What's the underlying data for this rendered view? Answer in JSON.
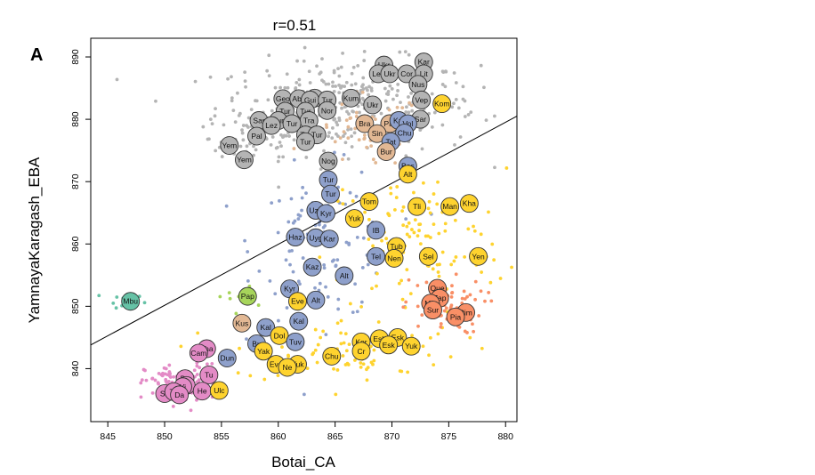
{
  "panel_label": "A",
  "chart_data": {
    "type": "scatter",
    "title": "r=0.51",
    "xlabel": "Botai_CA",
    "ylabel": "YamnayaKaragash_EBA",
    "xlim": [
      843.5,
      881
    ],
    "ylim": [
      831.5,
      893
    ],
    "xticks": [
      845,
      850,
      855,
      860,
      865,
      870,
      875,
      880
    ],
    "yticks": [
      840,
      850,
      860,
      870,
      880,
      890
    ],
    "grid": false,
    "fit_line": {
      "x": [
        843.5,
        881
      ],
      "y": [
        843.8,
        880.5
      ]
    },
    "colors": {
      "gray": "#b4b4b4",
      "tan": "#e2b894",
      "blue": "#8ea0cb",
      "yellow": "#fed32f",
      "orange": "#f98f66",
      "pink": "#e38bc6",
      "green": "#a7d55b",
      "teal": "#66c2a6"
    },
    "labeled_points": [
      {
        "t": "Ukr",
        "x": 869.3,
        "y": 888.7,
        "c": "gray"
      },
      {
        "t": "Kar",
        "x": 872.8,
        "y": 889.2,
        "c": "gray"
      },
      {
        "t": "Lez",
        "x": 868.8,
        "y": 887.3,
        "c": "gray"
      },
      {
        "t": "Ukr",
        "x": 869.8,
        "y": 887.3,
        "c": "gray"
      },
      {
        "t": "Lit",
        "x": 872.8,
        "y": 887.3,
        "c": "gray"
      },
      {
        "t": "Cor",
        "x": 871.3,
        "y": 887.3,
        "c": "gray"
      },
      {
        "t": "Nus",
        "x": 872.3,
        "y": 885.6,
        "c": "gray"
      },
      {
        "t": "Kum",
        "x": 866.4,
        "y": 883.4,
        "c": "gray"
      },
      {
        "t": "Geo",
        "x": 860.4,
        "y": 883.3,
        "c": "gray"
      },
      {
        "t": "Abk",
        "x": 861.8,
        "y": 883.3,
        "c": "gray"
      },
      {
        "t": "Ita",
        "x": 863.2,
        "y": 883.4,
        "c": "gray"
      },
      {
        "t": "Gui",
        "x": 862.8,
        "y": 883.1,
        "c": "gray"
      },
      {
        "t": "Tur",
        "x": 864.3,
        "y": 883.1,
        "c": "gray"
      },
      {
        "t": "Ukr",
        "x": 868.3,
        "y": 882.3,
        "c": "gray"
      },
      {
        "t": "Vep",
        "x": 872.6,
        "y": 883.1,
        "c": "gray"
      },
      {
        "t": "Kom",
        "x": 874.4,
        "y": 882.5,
        "c": "yellow"
      },
      {
        "t": "Tur",
        "x": 860.6,
        "y": 881.3,
        "c": "gray"
      },
      {
        "t": "Tur",
        "x": 862.4,
        "y": 881.3,
        "c": "gray"
      },
      {
        "t": "Nor",
        "x": 864.3,
        "y": 881.4,
        "c": "gray"
      },
      {
        "t": "Sar",
        "x": 858.3,
        "y": 879.8,
        "c": "gray"
      },
      {
        "t": "Tur",
        "x": 860.0,
        "y": 879.8,
        "c": "gray"
      },
      {
        "t": "Tra",
        "x": 862.7,
        "y": 879.8,
        "c": "gray"
      },
      {
        "t": "Lez",
        "x": 859.4,
        "y": 879.0,
        "c": "gray"
      },
      {
        "t": "Tur",
        "x": 861.2,
        "y": 879.3,
        "c": "gray"
      },
      {
        "t": "Sar",
        "x": 872.5,
        "y": 880.0,
        "c": "gray"
      },
      {
        "t": "Bra",
        "x": 867.6,
        "y": 879.3,
        "c": "tan"
      },
      {
        "t": "Pat",
        "x": 869.8,
        "y": 879.3,
        "c": "tan"
      },
      {
        "t": "Kal",
        "x": 870.6,
        "y": 879.8,
        "c": "blue"
      },
      {
        "t": "Vol",
        "x": 871.4,
        "y": 879.3,
        "c": "blue"
      },
      {
        "t": "Chu",
        "x": 871.1,
        "y": 877.8,
        "c": "blue"
      },
      {
        "t": "Pal",
        "x": 858.1,
        "y": 877.3,
        "c": "gray"
      },
      {
        "t": "Tur",
        "x": 862.4,
        "y": 877.5,
        "c": "gray"
      },
      {
        "t": "Tur",
        "x": 863.4,
        "y": 877.5,
        "c": "gray"
      },
      {
        "t": "Tur",
        "x": 862.4,
        "y": 876.4,
        "c": "gray"
      },
      {
        "t": "Sin",
        "x": 868.7,
        "y": 877.7,
        "c": "tan"
      },
      {
        "t": "Tat",
        "x": 869.9,
        "y": 876.4,
        "c": "blue"
      },
      {
        "t": "Yem",
        "x": 855.7,
        "y": 875.8,
        "c": "gray"
      },
      {
        "t": "Bur",
        "x": 869.5,
        "y": 874.8,
        "c": "tan"
      },
      {
        "t": "Yem",
        "x": 857.0,
        "y": 873.5,
        "c": "gray"
      },
      {
        "t": "Nog",
        "x": 864.4,
        "y": 873.3,
        "c": "gray"
      },
      {
        "t": "Bas",
        "x": 871.4,
        "y": 872.5,
        "c": "blue"
      },
      {
        "t": "Alt",
        "x": 871.4,
        "y": 871.2,
        "c": "yellow"
      },
      {
        "t": "Tur",
        "x": 864.4,
        "y": 870.3,
        "c": "blue"
      },
      {
        "t": "Tur",
        "x": 864.6,
        "y": 868.0,
        "c": "blue"
      },
      {
        "t": "Tom",
        "x": 868.0,
        "y": 866.8,
        "c": "yellow"
      },
      {
        "t": "Tli",
        "x": 872.2,
        "y": 866.0,
        "c": "yellow"
      },
      {
        "t": "Man",
        "x": 875.1,
        "y": 866.0,
        "c": "yellow"
      },
      {
        "t": "Kha",
        "x": 876.8,
        "y": 866.5,
        "c": "yellow"
      },
      {
        "t": "Uzb",
        "x": 863.3,
        "y": 865.4,
        "c": "blue"
      },
      {
        "t": "Kyr",
        "x": 864.2,
        "y": 864.9,
        "c": "blue"
      },
      {
        "t": "Yuk",
        "x": 866.7,
        "y": 864.1,
        "c": "yellow"
      },
      {
        "t": "IB",
        "x": 868.6,
        "y": 862.2,
        "c": "blue"
      },
      {
        "t": "Haz",
        "x": 861.5,
        "y": 861.1,
        "c": "blue"
      },
      {
        "t": "Uyg",
        "x": 863.3,
        "y": 861.0,
        "c": "blue"
      },
      {
        "t": "Kar",
        "x": 864.5,
        "y": 860.8,
        "c": "blue"
      },
      {
        "t": "Tub",
        "x": 870.4,
        "y": 859.6,
        "c": "yellow"
      },
      {
        "t": "Tel",
        "x": 868.6,
        "y": 858.0,
        "c": "blue"
      },
      {
        "t": "Nen",
        "x": 870.2,
        "y": 857.7,
        "c": "yellow"
      },
      {
        "t": "Sel",
        "x": 873.2,
        "y": 858.0,
        "c": "yellow"
      },
      {
        "t": "Yen",
        "x": 877.6,
        "y": 858.0,
        "c": "yellow"
      },
      {
        "t": "Kaz",
        "x": 863.0,
        "y": 856.3,
        "c": "blue"
      },
      {
        "t": "Alt",
        "x": 865.8,
        "y": 854.9,
        "c": "blue"
      },
      {
        "t": "Que",
        "x": 874.0,
        "y": 852.9,
        "c": "orange"
      },
      {
        "t": "Kyr",
        "x": 861.0,
        "y": 852.8,
        "c": "blue"
      },
      {
        "t": "Pap",
        "x": 857.3,
        "y": 851.6,
        "c": "green"
      },
      {
        "t": "Mbu",
        "x": 847.0,
        "y": 850.8,
        "c": "teal"
      },
      {
        "t": "Eve",
        "x": 861.7,
        "y": 850.8,
        "c": "yellow"
      },
      {
        "t": "Alt",
        "x": 863.3,
        "y": 851.0,
        "c": "blue"
      },
      {
        "t": "Zap",
        "x": 874.2,
        "y": 851.3,
        "c": "orange"
      },
      {
        "t": "Mix",
        "x": 873.4,
        "y": 850.5,
        "c": "orange"
      },
      {
        "t": "Sur",
        "x": 873.6,
        "y": 849.4,
        "c": "orange"
      },
      {
        "t": "Pim",
        "x": 876.5,
        "y": 849.0,
        "c": "orange"
      },
      {
        "t": "Pia",
        "x": 875.6,
        "y": 848.3,
        "c": "orange"
      },
      {
        "t": "Kus",
        "x": 856.8,
        "y": 847.3,
        "c": "tan"
      },
      {
        "t": "Kal",
        "x": 861.8,
        "y": 847.6,
        "c": "blue"
      },
      {
        "t": "Kal",
        "x": 858.9,
        "y": 846.6,
        "c": "blue"
      },
      {
        "t": "Dol",
        "x": 860.1,
        "y": 845.3,
        "c": "yellow"
      },
      {
        "t": "Tuv",
        "x": 861.5,
        "y": 844.3,
        "c": "blue"
      },
      {
        "t": "Esk",
        "x": 870.5,
        "y": 845.0,
        "c": "yellow"
      },
      {
        "t": "Kor",
        "x": 867.3,
        "y": 844.3,
        "c": "yellow"
      },
      {
        "t": "Esk",
        "x": 868.9,
        "y": 844.8,
        "c": "yellow"
      },
      {
        "t": "Bu",
        "x": 858.1,
        "y": 844.0,
        "c": "blue"
      },
      {
        "t": "Esk",
        "x": 869.7,
        "y": 843.8,
        "c": "yellow"
      },
      {
        "t": "Yuk",
        "x": 871.7,
        "y": 843.6,
        "c": "yellow"
      },
      {
        "t": "Tha",
        "x": 853.7,
        "y": 843.2,
        "c": "pink"
      },
      {
        "t": "Yak",
        "x": 858.7,
        "y": 842.8,
        "c": "yellow"
      },
      {
        "t": "Cr",
        "x": 867.3,
        "y": 842.8,
        "c": "yellow"
      },
      {
        "t": "Chu",
        "x": 864.7,
        "y": 842.0,
        "c": "yellow"
      },
      {
        "t": "Cam",
        "x": 853.0,
        "y": 842.5,
        "c": "pink"
      },
      {
        "t": "Dun",
        "x": 855.5,
        "y": 841.7,
        "c": "blue"
      },
      {
        "t": "Eve",
        "x": 859.8,
        "y": 840.7,
        "c": "yellow"
      },
      {
        "t": "Yuk",
        "x": 861.7,
        "y": 840.7,
        "c": "yellow"
      },
      {
        "t": "Ne",
        "x": 860.8,
        "y": 840.2,
        "c": "yellow"
      },
      {
        "t": "Tu",
        "x": 853.9,
        "y": 839.0,
        "c": "pink"
      },
      {
        "t": "Da",
        "x": 851.8,
        "y": 838.4,
        "c": "pink"
      },
      {
        "t": "Ya",
        "x": 851.9,
        "y": 837.3,
        "c": "pink"
      },
      {
        "t": "Yi",
        "x": 851.6,
        "y": 837.1,
        "c": "pink"
      },
      {
        "t": "He",
        "x": 853.3,
        "y": 836.4,
        "c": "pink"
      },
      {
        "t": "Ulc",
        "x": 854.8,
        "y": 836.5,
        "c": "yellow"
      },
      {
        "t": "Sh",
        "x": 850.0,
        "y": 836.0,
        "c": "pink"
      },
      {
        "t": "Tu",
        "x": 850.8,
        "y": 836.3,
        "c": "pink"
      },
      {
        "t": "Da",
        "x": 851.3,
        "y": 835.8,
        "c": "pink"
      }
    ],
    "clouds": [
      {
        "c": "gray",
        "cx": 866,
        "cy": 882,
        "sx": 5.8,
        "sy": 3.8,
        "n": 330
      },
      {
        "c": "gray",
        "cx": 858,
        "cy": 877,
        "sx": 2.0,
        "sy": 2.5,
        "n": 40
      },
      {
        "c": "tan",
        "cx": 868,
        "cy": 878,
        "sx": 2.5,
        "sy": 3.0,
        "n": 60
      },
      {
        "c": "blue",
        "cx": 864,
        "cy": 860,
        "sx": 3.0,
        "sy": 6.0,
        "n": 110
      },
      {
        "c": "yellow",
        "cx": 872,
        "cy": 860,
        "sx": 4.0,
        "sy": 6.0,
        "n": 110
      },
      {
        "c": "yellow",
        "cx": 866,
        "cy": 843,
        "sx": 5.0,
        "sy": 2.5,
        "n": 90
      },
      {
        "c": "orange",
        "cx": 874.5,
        "cy": 850,
        "sx": 1.8,
        "sy": 2.2,
        "n": 70
      },
      {
        "c": "pink",
        "cx": 851.5,
        "cy": 837.5,
        "sx": 1.6,
        "sy": 1.6,
        "n": 120
      },
      {
        "c": "green",
        "cx": 857.0,
        "cy": 851.5,
        "sx": 1.2,
        "sy": 1.2,
        "n": 10
      },
      {
        "c": "teal",
        "cx": 846.5,
        "cy": 851.0,
        "sx": 1.2,
        "sy": 0.6,
        "n": 9
      }
    ]
  }
}
